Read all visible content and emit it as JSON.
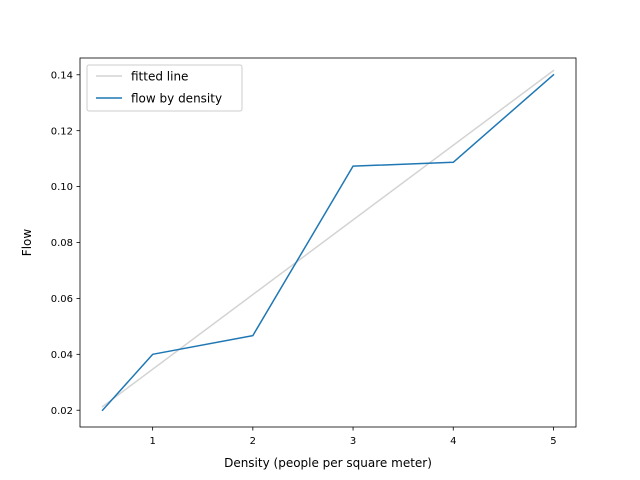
{
  "chart_data": {
    "type": "line",
    "title": "",
    "xlabel": "Density (people per square meter)",
    "ylabel": "Flow",
    "xlim": [
      0.275,
      5.225
    ],
    "ylim": [
      0.014,
      0.146
    ],
    "xticks": [
      1,
      2,
      3,
      4,
      5
    ],
    "xtick_labels": [
      "1",
      "2",
      "3",
      "4",
      "5"
    ],
    "yticks": [
      0.02,
      0.04,
      0.06,
      0.08,
      0.1,
      0.12,
      0.14
    ],
    "ytick_labels": [
      "0.02",
      "0.04",
      "0.06",
      "0.08",
      "0.10",
      "0.12",
      "0.14"
    ],
    "grid": false,
    "legend_position": "upper left",
    "series": [
      {
        "name": "fitted line",
        "color": "#d3d3d3",
        "x": [
          0.5,
          5
        ],
        "y": [
          0.0213,
          0.1415
        ]
      },
      {
        "name": "flow by density",
        "color": "#1f77b4",
        "x": [
          0.5,
          1,
          2,
          3,
          4,
          5
        ],
        "y": [
          0.02,
          0.04,
          0.0467,
          0.1073,
          0.1087,
          0.14
        ]
      }
    ]
  }
}
